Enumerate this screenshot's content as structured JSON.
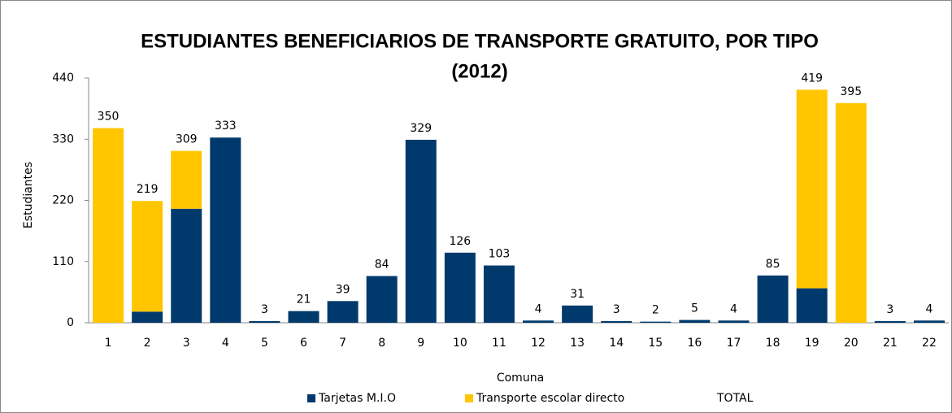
{
  "chart_data": {
    "type": "stacked-bar",
    "title": "ESTUDIANTES BENEFICIARIOS  DE TRANSPORTE GRATUITO, POR TIPO",
    "subtitle": "(2012)",
    "x_label": "Comuna",
    "y_label": "Estudiantes",
    "categories": [
      "1",
      "2",
      "3",
      "4",
      "5",
      "6",
      "7",
      "8",
      "9",
      "10",
      "11",
      "12",
      "13",
      "14",
      "15",
      "16",
      "17",
      "18",
      "19",
      "20",
      "21",
      "22"
    ],
    "series": [
      {
        "name": "Tarjetas M.I.O",
        "color": "#003a6c",
        "values": [
          0,
          20,
          205,
          333,
          3,
          21,
          39,
          84,
          329,
          126,
          103,
          4,
          31,
          3,
          2,
          5,
          4,
          85,
          62,
          0,
          3,
          4
        ]
      },
      {
        "name": "Transporte escolar directo",
        "color": "#ffc600",
        "values": [
          350,
          199,
          104,
          0,
          0,
          0,
          0,
          0,
          0,
          0,
          0,
          0,
          0,
          0,
          0,
          0,
          0,
          0,
          357,
          395,
          0,
          0
        ]
      },
      {
        "name": "TOTAL",
        "color": null,
        "values": [
          350,
          219,
          309,
          333,
          3,
          21,
          39,
          84,
          329,
          126,
          103,
          4,
          31,
          3,
          2,
          5,
          4,
          85,
          419,
          395,
          3,
          4
        ]
      }
    ],
    "ylim": [
      0,
      440
    ],
    "yticks": [
      0,
      110,
      220,
      330,
      440
    ],
    "grid": false,
    "legend": "bottom"
  }
}
